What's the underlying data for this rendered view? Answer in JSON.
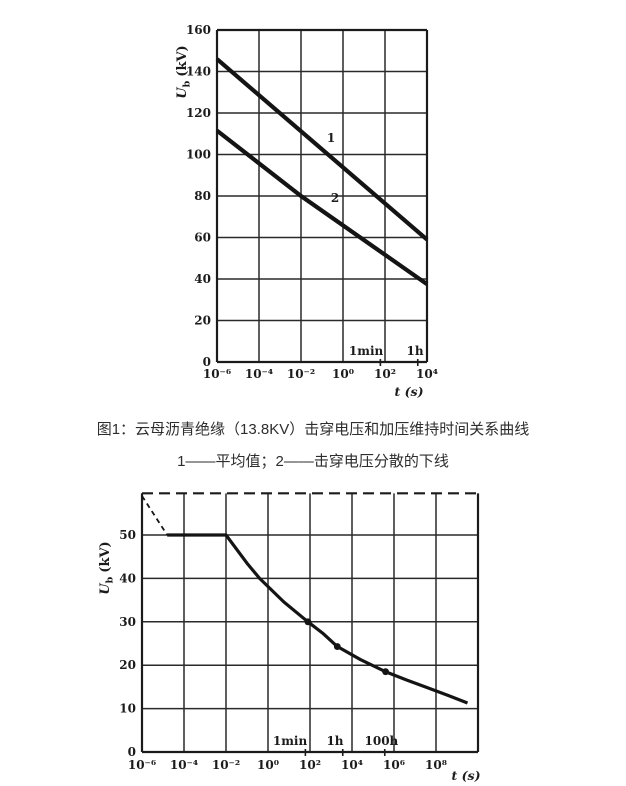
{
  "figure1": {
    "caption": "图1：云母沥青绝缘（13.8KV）击穿电压和加压维持时间关系曲线",
    "legend": "1——平均值；2——击穿电压分散的下线"
  },
  "chart_data": [
    {
      "type": "line",
      "title": "图1：云母沥青绝缘（13.8KV）击穿电压和加压维持时间关系曲线",
      "xscale": "log",
      "xlabel": "t (s)",
      "ylabel": {
        "main": "U",
        "sub": "b",
        "unit": "(kV)"
      },
      "xlim_log": [
        -6,
        4
      ],
      "ylim": [
        0,
        160
      ],
      "grid": true,
      "xticks": [
        {
          "log": -6,
          "label": "10⁻⁶"
        },
        {
          "log": -4,
          "label": "10⁻⁴"
        },
        {
          "log": -2,
          "label": "10⁻²"
        },
        {
          "log": 0,
          "label": "10⁰"
        },
        {
          "log": 2,
          "label": "10²"
        },
        {
          "log": 4,
          "label": "10⁴"
        }
      ],
      "yticks": [
        {
          "v": 0,
          "label": "0"
        },
        {
          "v": 20,
          "label": "20"
        },
        {
          "v": 40,
          "label": "40"
        },
        {
          "v": 60,
          "label": "60"
        },
        {
          "v": 80,
          "label": "80"
        },
        {
          "v": 100,
          "label": "100"
        },
        {
          "v": 120,
          "label": "120"
        },
        {
          "v": 140,
          "label": "140"
        },
        {
          "v": 160,
          "label": "160"
        }
      ],
      "time_marks": [
        {
          "log": 1.78,
          "label": "1min",
          "text_log": 1.1
        },
        {
          "log": 3.56,
          "label": "1h",
          "text_log": 3.43
        }
      ],
      "series": [
        {
          "label": "1",
          "style": "solid",
          "width": 4.2,
          "points": [
            [
              -6,
              146
            ],
            [
              4,
              59
            ]
          ]
        },
        {
          "label": "2",
          "style": "solid",
          "width": 4.2,
          "points": [
            [
              -6,
              111.5
            ],
            [
              -2,
              80
            ],
            [
              4,
              37.5
            ]
          ]
        }
      ],
      "annotations": [
        {
          "text": "1",
          "log": -0.57,
          "v": 106
        },
        {
          "text": "2",
          "log": -0.38,
          "v": 77
        }
      ]
    },
    {
      "type": "line",
      "title": "",
      "xscale": "log",
      "xlabel": "t (s)",
      "ylabel": {
        "main": "U",
        "sub": "b",
        "unit": "(kV)"
      },
      "xlim_log": [
        -6,
        10
      ],
      "ylim": [
        0,
        59.6
      ],
      "grid": true,
      "xticks": [
        {
          "log": -6,
          "label": "10⁻⁶"
        },
        {
          "log": -4,
          "label": "10⁻⁴"
        },
        {
          "log": -2,
          "label": "10⁻²"
        },
        {
          "log": 0,
          "label": "10⁰"
        },
        {
          "log": 2,
          "label": "10²"
        },
        {
          "log": 4,
          "label": "10⁴"
        },
        {
          "log": 6,
          "label": "10⁶"
        },
        {
          "log": 8,
          "label": "10⁸"
        }
      ],
      "yticks": [
        {
          "v": 0,
          "label": "0"
        },
        {
          "v": 10,
          "label": "10"
        },
        {
          "v": 20,
          "label": "20"
        },
        {
          "v": 30,
          "label": "30"
        },
        {
          "v": 40,
          "label": "40"
        },
        {
          "v": 50,
          "label": "50"
        }
      ],
      "time_marks": [
        {
          "log": 1.78,
          "label": "1min",
          "text_log": 1.05
        },
        {
          "log": 3.56,
          "label": "1h",
          "text_log": 3.19
        },
        {
          "log": 5.56,
          "label": "100h",
          "text_log": 5.4
        }
      ],
      "series": [
        {
          "label": "",
          "style": "dashed",
          "width": 1.8,
          "points": [
            [
              -6,
              59
            ],
            [
              -4.8,
              50
            ]
          ]
        },
        {
          "label": "",
          "style": "solid",
          "width": 3.2,
          "points": [
            [
              -4.8,
              50
            ],
            [
              -2,
              50
            ],
            [
              -1,
              43.5
            ],
            [
              -0.4,
              40
            ],
            [
              0.75,
              34.6
            ],
            [
              1.9,
              30
            ],
            [
              2.6,
              27.4
            ],
            [
              3.3,
              24.3
            ],
            [
              4.4,
              21.3
            ],
            [
              5.6,
              18.5
            ],
            [
              6.6,
              16.6
            ],
            [
              7.6,
              14.8
            ],
            [
              8.6,
              13
            ],
            [
              9.5,
              11.3
            ]
          ],
          "markers": [
            [
              1.9,
              30
            ],
            [
              3.3,
              24.3
            ],
            [
              5.6,
              18.5
            ]
          ]
        }
      ],
      "annotations": []
    }
  ]
}
